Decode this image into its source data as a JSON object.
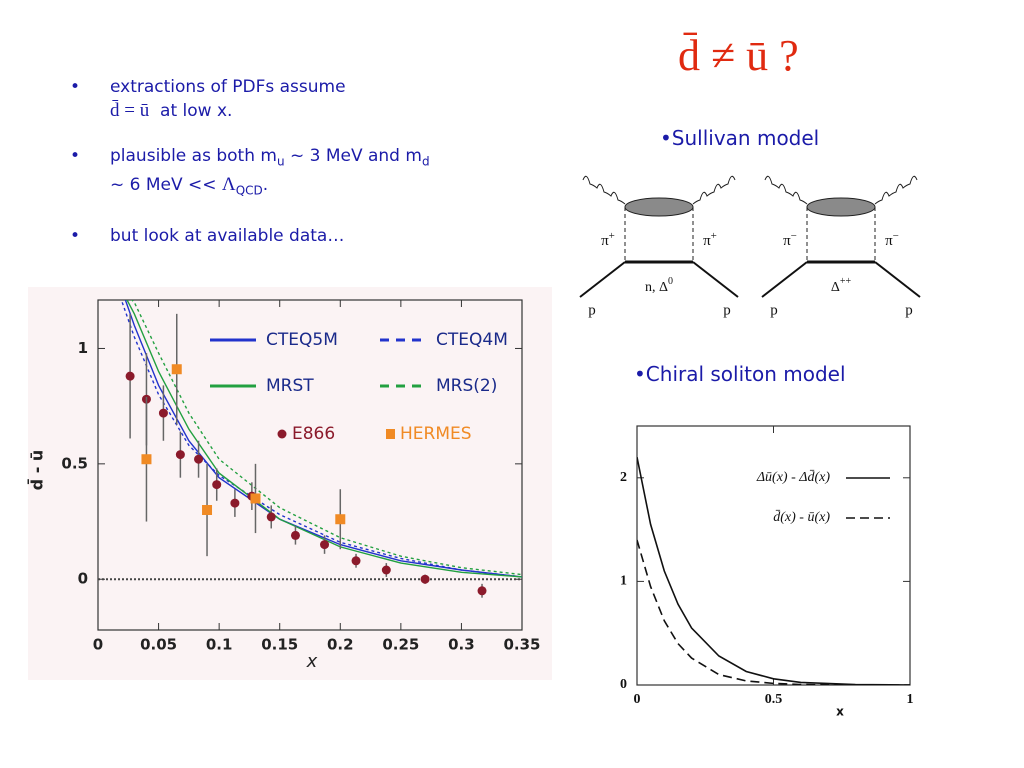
{
  "title": "d̄ ≠ ū ?",
  "bullets": [
    {
      "lines": [
        [
          {
            "text": "extractions of PDFs assume"
          }
        ],
        [
          {
            "text": "d̄ = ū",
            "style": "serif"
          },
          {
            "text": "  at low x."
          }
        ]
      ]
    },
    {
      "lines": [
        [
          {
            "text": "plausible as both m"
          },
          {
            "text": "u",
            "style": "sub"
          },
          {
            "text": " ~ 3 MeV and m"
          },
          {
            "text": "d",
            "style": "sub"
          }
        ],
        [
          {
            "text": "~ 6 MeV << "
          },
          {
            "text": "Λ",
            "style": "serif"
          },
          {
            "text": "QCD",
            "style": "sub"
          },
          {
            "text": "."
          }
        ]
      ]
    },
    {
      "lines": [
        [
          {
            "text": "but look at available data…"
          }
        ]
      ]
    }
  ],
  "headings": [
    "•Sullivan model",
    "•Chiral soliton model"
  ],
  "diagrams": [
    {
      "left_pion": {
        "text": "π",
        "sup": "+"
      },
      "right_pion": {
        "text": "π",
        "sup": "+"
      },
      "left_leg": "p",
      "right_leg": "p",
      "baryon": {
        "text": "n, Δ",
        "sup": "0"
      }
    },
    {
      "left_pion": {
        "text": "π",
        "sup": "−"
      },
      "right_pion": {
        "text": "π",
        "sup": "−"
      },
      "left_leg": "p",
      "right_leg": "p",
      "baryon": {
        "text": "Δ",
        "sup": "++"
      }
    }
  ],
  "chart_data": [
    {
      "type": "line",
      "ylabel": "d̄ - ū",
      "xlabel": "x",
      "xlim": [
        0,
        0.35
      ],
      "ylim": [
        -0.22,
        1.21
      ],
      "xticks": [
        0,
        0.05,
        0.1,
        0.15,
        0.2,
        0.25,
        0.3,
        0.35
      ],
      "yticks": [
        0,
        0.5,
        1
      ],
      "series": [
        {
          "name": "CTEQ5M",
          "color": "#2233cc",
          "dash": false,
          "x": [
            0.02,
            0.03,
            0.05,
            0.075,
            0.1,
            0.15,
            0.2,
            0.25,
            0.3,
            0.35
          ],
          "values": [
            1.25,
            1.1,
            0.84,
            0.6,
            0.44,
            0.26,
            0.15,
            0.08,
            0.04,
            0.01
          ]
        },
        {
          "name": "CTEQ4M",
          "color": "#2233cc",
          "dash": true,
          "x": [
            0.02,
            0.03,
            0.05,
            0.075,
            0.1,
            0.15,
            0.2,
            0.25,
            0.3,
            0.35
          ],
          "values": [
            1.2,
            1.05,
            0.8,
            0.58,
            0.45,
            0.28,
            0.16,
            0.09,
            0.04,
            0.01
          ]
        },
        {
          "name": "MRST",
          "color": "#22a040",
          "dash": false,
          "x": [
            0.02,
            0.03,
            0.05,
            0.075,
            0.1,
            0.15,
            0.2,
            0.25,
            0.3,
            0.35
          ],
          "values": [
            1.25,
            1.15,
            0.9,
            0.65,
            0.46,
            0.26,
            0.14,
            0.07,
            0.03,
            0.01
          ]
        },
        {
          "name": "MRS(2)",
          "color": "#22a040",
          "dash": true,
          "x": [
            0.02,
            0.03,
            0.05,
            0.075,
            0.1,
            0.15,
            0.2,
            0.25,
            0.3,
            0.35
          ],
          "values": [
            1.25,
            1.2,
            0.98,
            0.72,
            0.52,
            0.31,
            0.18,
            0.1,
            0.05,
            0.02
          ]
        },
        {
          "name": "E866",
          "color": "#8b1a2b",
          "marker": "circle",
          "x": [
            0.0265,
            0.04,
            0.054,
            0.068,
            0.083,
            0.098,
            0.113,
            0.127,
            0.143,
            0.163,
            0.187,
            0.213,
            0.238,
            0.27,
            0.317
          ],
          "values": [
            0.88,
            0.78,
            0.72,
            0.54,
            0.52,
            0.41,
            0.33,
            0.36,
            0.27,
            0.19,
            0.15,
            0.08,
            0.04,
            0.0,
            -0.05
          ],
          "errors": [
            0.27,
            0.2,
            0.12,
            0.1,
            0.08,
            0.07,
            0.06,
            0.06,
            0.05,
            0.04,
            0.04,
            0.03,
            0.03,
            0.02,
            0.03
          ]
        },
        {
          "name": "HERMES",
          "color": "#f08a24",
          "marker": "square",
          "x": [
            0.04,
            0.065,
            0.09,
            0.13,
            0.2
          ],
          "values": [
            0.52,
            0.91,
            0.3,
            0.35,
            0.26
          ],
          "errors": [
            0.27,
            0.24,
            0.2,
            0.15,
            0.13
          ]
        }
      ]
    },
    {
      "type": "line",
      "xlabel": "x",
      "xlim": [
        0,
        1
      ],
      "ylim": [
        0,
        2.5
      ],
      "xticks": [
        0,
        0.5,
        1
      ],
      "yticks": [
        0,
        1,
        2
      ],
      "series": [
        {
          "name": "Δū(x) - Δd̄(x)",
          "color": "#111111",
          "dash": false,
          "x": [
            0,
            0.05,
            0.1,
            0.15,
            0.2,
            0.3,
            0.4,
            0.5,
            0.6,
            0.8,
            1
          ],
          "values": [
            2.2,
            1.55,
            1.1,
            0.78,
            0.55,
            0.28,
            0.13,
            0.06,
            0.025,
            0.005,
            0
          ]
        },
        {
          "name": "d̄(x) - ū(x)",
          "color": "#111111",
          "dash": true,
          "x": [
            0,
            0.05,
            0.1,
            0.15,
            0.2,
            0.3,
            0.4,
            0.5,
            0.6,
            0.8,
            1
          ],
          "values": [
            1.4,
            0.95,
            0.62,
            0.4,
            0.26,
            0.1,
            0.04,
            0.015,
            0.005,
            0,
            0
          ]
        }
      ]
    }
  ]
}
